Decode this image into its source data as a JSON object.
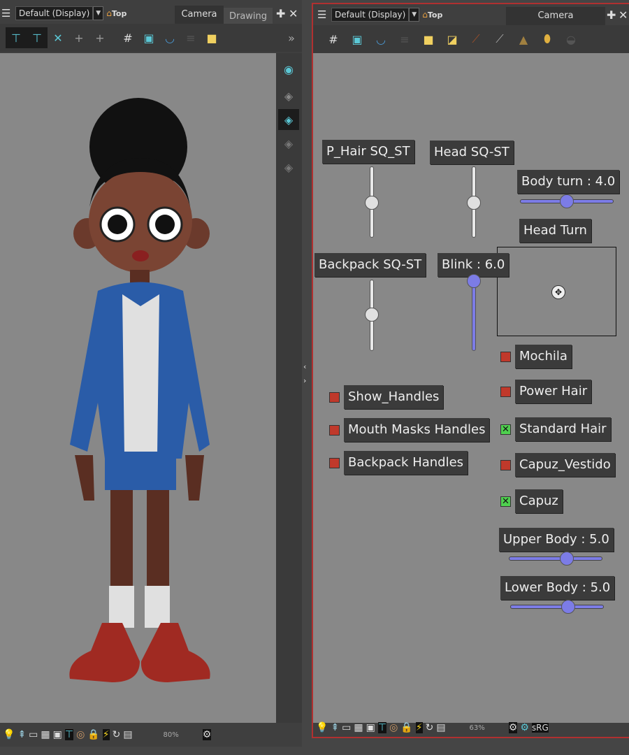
{
  "left_view": {
    "view_mode": "Default (Display)",
    "home": "Top",
    "tabs": [
      "Camera",
      "Drawing"
    ],
    "zoom": "80%",
    "toolbar_icons": [
      "peg-eye-icon",
      "peg-lock-icon",
      "peg-x-icon",
      "peg-add-icon",
      "peg-add-icon",
      "grid-icon",
      "camera-frame-icon",
      "onion-skin-icon",
      "layer-stack-icon",
      "lock-icon"
    ],
    "side_icons": [
      "eye-icon",
      "layers-icon",
      "layers-active-icon",
      "layers-icon",
      "layers-icon"
    ]
  },
  "right_view": {
    "view_mode": "Default (Display)",
    "home": "Top",
    "tab": "Camera",
    "zoom": "63%",
    "color_space": "sRG",
    "toolbar_icons": [
      "grid-icon",
      "camera-frame-icon",
      "onion-skin-icon",
      "layer-stack-icon",
      "lock-icon",
      "unlock-add-icon",
      "ruler-icon",
      "ruler-icon",
      "light-icon",
      "mirror-icon",
      "pot-icon"
    ]
  },
  "controls": {
    "sliders_v": [
      {
        "label": "P_Hair SQ_ST",
        "value": 0.5
      },
      {
        "label": "Head SQ-ST",
        "value": 0.5
      },
      {
        "label": "Backpack SQ-ST",
        "value": 0.5
      },
      {
        "label": "Blink : 6.0",
        "value": 6.0
      }
    ],
    "sliders_h": [
      {
        "label": "Body turn : 4.0",
        "value": 4.0
      },
      {
        "label": "Upper Body : 5.0",
        "value": 5.0
      },
      {
        "label": "Lower Body : 5.0",
        "value": 5.0
      }
    ],
    "head_turn": "Head Turn",
    "checkboxes_left": [
      {
        "label": "Show_Handles",
        "checked": false
      },
      {
        "label": "Mouth Masks Handles",
        "checked": false
      },
      {
        "label": "Backpack Handles",
        "checked": false
      }
    ],
    "checkboxes_right": [
      {
        "label": "Mochila",
        "checked": false
      },
      {
        "label": "Power Hair",
        "checked": false
      },
      {
        "label": "Standard Hair",
        "checked": true
      },
      {
        "label": "Capuz_Vestido",
        "checked": false
      },
      {
        "label": "Capuz",
        "checked": true
      }
    ]
  },
  "colors": {
    "slider_accent": "#7c7ce6",
    "unchecked": "#c0392b",
    "checked": "#4fd04f",
    "active_border": "#b03030"
  }
}
